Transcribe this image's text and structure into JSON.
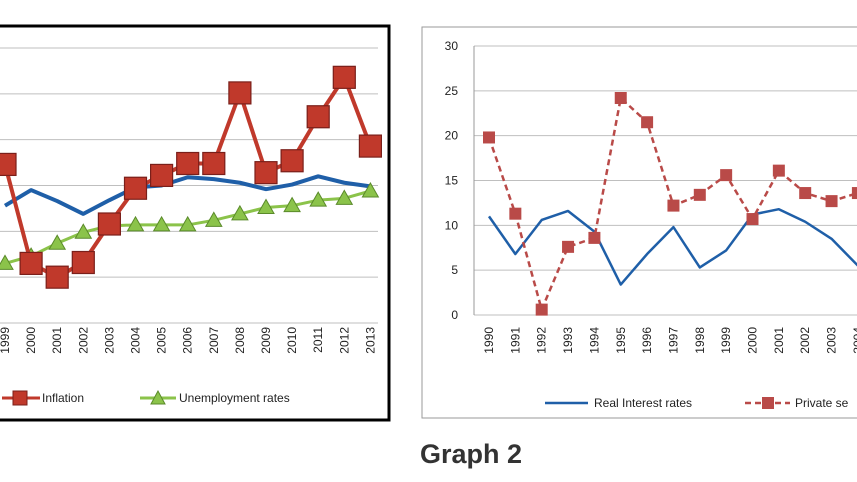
{
  "colors": {
    "inflation": "#c0392b",
    "inflation_marker": "#c0392b",
    "unemployment": "#8bc34a",
    "gdp_line": "#1f5fa8",
    "real_interest": "#1f5fa8",
    "private_sector": "#b94a48",
    "grid": "#bfbfbf"
  },
  "chart_data": [
    {
      "type": "line",
      "title": "",
      "xlabel": "",
      "ylabel": "",
      "categories": [
        "1999",
        "2000",
        "2001",
        "2002",
        "2003",
        "2004",
        "2005",
        "2006",
        "2007",
        "2008",
        "2009",
        "2010",
        "2011",
        "2012",
        "2013"
      ],
      "ylim": [
        0,
        30
      ],
      "grid": true,
      "legend_position": "bottom",
      "series": [
        {
          "name": "",
          "key": "blue",
          "values": [
            12.8,
            14.5,
            13.3,
            11.9,
            13.4,
            14.8,
            15.0,
            15.9,
            15.7,
            15.3,
            14.6,
            15.1,
            16.0,
            15.3,
            14.9
          ]
        },
        {
          "name": "Inflation",
          "key": "inflation",
          "values": [
            17.3,
            6.5,
            5.0,
            6.6,
            10.8,
            14.7,
            16.1,
            17.4,
            17.4,
            25.1,
            16.4,
            17.7,
            22.5,
            26.8,
            19.3
          ]
        },
        {
          "name": "Unemployment rates",
          "key": "unemployment",
          "values": [
            6.5,
            7.3,
            8.7,
            9.9,
            10.6,
            10.7,
            10.7,
            10.7,
            11.2,
            11.9,
            12.6,
            12.8,
            13.4,
            13.6,
            14.4
          ]
        }
      ]
    },
    {
      "type": "line",
      "title": "",
      "caption": "Graph 2",
      "xlabel": "",
      "ylabel": "",
      "categories": [
        "1990",
        "1991",
        "1992",
        "1993",
        "1994",
        "1995",
        "1996",
        "1997",
        "1998",
        "1999",
        "2000",
        "2001",
        "2002",
        "2003",
        "2004"
      ],
      "ylim": [
        0,
        30
      ],
      "yticks": [
        0,
        5,
        10,
        15,
        20,
        25,
        30
      ],
      "grid": true,
      "legend_position": "bottom",
      "series": [
        {
          "name": "Real Interest rates",
          "key": "real_interest",
          "values": [
            11.0,
            6.8,
            10.6,
            11.6,
            9.3,
            3.4,
            6.8,
            9.8,
            5.3,
            7.2,
            11.2,
            11.8,
            10.4,
            8.5,
            5.5
          ]
        },
        {
          "name": "Private se",
          "key": "private_sector",
          "values": [
            19.8,
            11.3,
            0.6,
            7.6,
            8.6,
            24.2,
            21.5,
            12.2,
            13.4,
            15.6,
            10.7,
            16.1,
            13.6,
            12.7,
            13.6
          ]
        }
      ]
    }
  ]
}
